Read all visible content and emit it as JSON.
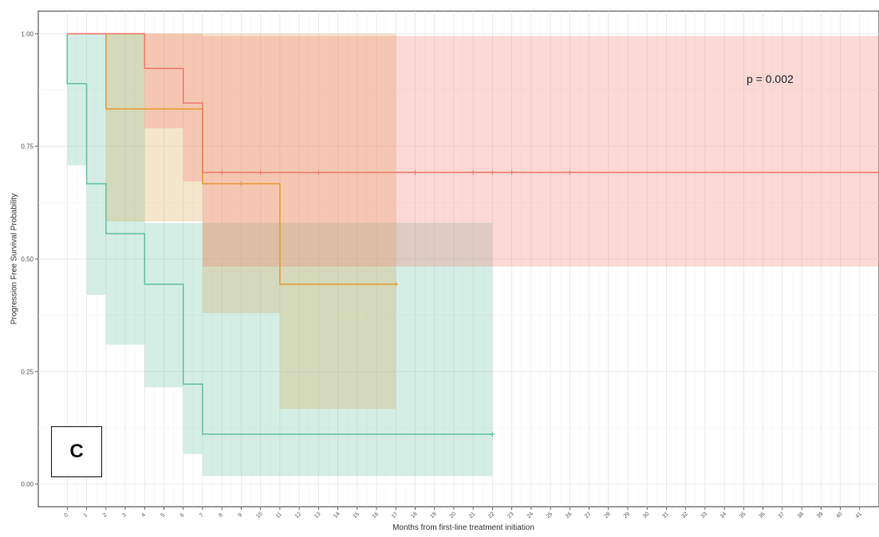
{
  "chart_data": {
    "type": "line",
    "subtype": "kaplan-meier",
    "panel_label": "C",
    "annotation": "p = 0.002",
    "xlabel": "Months from first-line treatment initiation",
    "ylabel": "Progression Free Survival Probability",
    "xlim": [
      -1.5,
      42
    ],
    "ylim": [
      -0.05,
      1.05
    ],
    "x_ticks": [
      0,
      1,
      2,
      3,
      4,
      5,
      6,
      7,
      8,
      9,
      10,
      11,
      12,
      13,
      14,
      15,
      16,
      17,
      18,
      19,
      20,
      21,
      22,
      23,
      24,
      25,
      26,
      27,
      28,
      29,
      30,
      31,
      32,
      33,
      34,
      35,
      36,
      37,
      38,
      39,
      40,
      41
    ],
    "y_ticks": [
      "0.00",
      "0.25",
      "0.50",
      "0.75",
      "1.00"
    ],
    "y_tick_values": [
      0,
      0.25,
      0.5,
      0.75,
      1.0
    ],
    "grid": true,
    "series": [
      {
        "color": "#66c2a5",
        "band_color": "#66c2a5",
        "x_end": 22,
        "steps": [
          [
            0,
            1.0
          ],
          [
            0,
            0.889
          ],
          [
            1,
            0.667
          ],
          [
            2,
            0.556
          ],
          [
            4,
            0.444
          ],
          [
            6,
            0.222
          ],
          [
            7,
            0.111
          ]
        ],
        "ci": [
          [
            0,
            0.708,
            1.0
          ],
          [
            1,
            0.42,
            1.0
          ],
          [
            2,
            0.31,
            1.0
          ],
          [
            4,
            0.215,
            0.58
          ],
          [
            6,
            0.067,
            0.58
          ],
          [
            7,
            0.018,
            0.58
          ]
        ],
        "censors": [
          22
        ]
      },
      {
        "color": "#e69b3a",
        "band_color": "#d9a64a",
        "x_end": 17,
        "steps": [
          [
            0,
            1.0
          ],
          [
            2,
            0.833
          ],
          [
            7,
            0.667
          ],
          [
            11,
            0.444
          ]
        ],
        "ci": [
          [
            2,
            0.583,
            1.0
          ],
          [
            7,
            0.38,
            1.0
          ],
          [
            11,
            0.167,
            1.0
          ]
        ],
        "censors": [
          9,
          17
        ]
      },
      {
        "color": "#f07b6e",
        "band_color": "#f8766d",
        "x_end": 42,
        "steps": [
          [
            0,
            1.0
          ],
          [
            4,
            0.923
          ],
          [
            6,
            0.846
          ],
          [
            7,
            0.692
          ]
        ],
        "ci": [
          [
            4,
            0.79,
            1.0
          ],
          [
            6,
            0.672,
            1.0
          ],
          [
            7,
            0.483,
            0.995
          ]
        ],
        "censors": [
          8,
          10,
          13,
          18,
          21,
          22,
          23,
          26
        ]
      }
    ]
  }
}
